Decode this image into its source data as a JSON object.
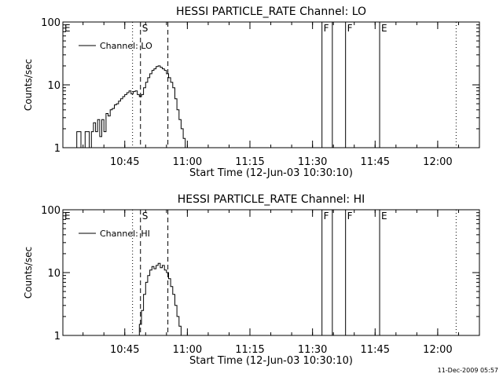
{
  "chart_data": [
    {
      "type": "line",
      "title": "HESSI PARTICLE_RATE Channel: LO",
      "xlabel": "Start Time (12-Jun-03 10:30:10)",
      "ylabel": "Counts/sec",
      "yscale": "log",
      "ylim": [
        1,
        100
      ],
      "xlim": [
        "10:30:10",
        "12:10:00"
      ],
      "x_ticks": [
        "10:45",
        "11:00",
        "11:15",
        "11:30",
        "11:45",
        "12:00"
      ],
      "y_ticks": [
        "1",
        "10",
        "100"
      ],
      "legend_position": "top-left",
      "grid": false,
      "series": [
        {
          "name": "Channel: LO",
          "x": [
            "10:33:00",
            "10:33:30",
            "10:34:00",
            "10:34:30",
            "10:35:00",
            "10:35:30",
            "10:36:00",
            "10:36:30",
            "10:37:00",
            "10:37:30",
            "10:38:00",
            "10:38:30",
            "10:39:00",
            "10:39:30",
            "10:40:00",
            "10:40:30",
            "10:41:00",
            "10:41:30",
            "10:42:00",
            "10:42:30",
            "10:43:00",
            "10:43:30",
            "10:44:00",
            "10:44:30",
            "10:45:00",
            "10:45:30",
            "10:46:00",
            "10:46:30",
            "10:47:00",
            "10:47:30",
            "10:48:00",
            "10:48:30",
            "10:49:00",
            "10:49:30",
            "10:50:00",
            "10:50:30",
            "10:51:00",
            "10:51:30",
            "10:52:00",
            "10:52:30",
            "10:53:00",
            "10:53:30",
            "10:54:00",
            "10:54:30",
            "10:55:00",
            "10:55:30",
            "10:56:00",
            "10:56:30",
            "10:57:00",
            "10:57:30",
            "10:58:00",
            "10:58:30",
            "10:59:00",
            "10:59:30"
          ],
          "values": [
            1,
            1.8,
            1.8,
            1,
            1,
            1.8,
            1.8,
            1,
            1.8,
            2.5,
            1.8,
            2.8,
            1.5,
            2.8,
            1.8,
            3.5,
            3.2,
            4,
            4.2,
            4.8,
            5,
            5.5,
            6,
            6.5,
            7,
            7.5,
            8,
            7.2,
            7.8,
            8,
            7,
            6.5,
            7,
            9,
            11,
            13,
            15,
            17,
            18,
            19.5,
            20,
            19,
            18,
            17,
            15,
            13,
            11,
            9,
            6,
            4,
            2.8,
            2,
            1.4,
            1
          ]
        }
      ],
      "markers": [
        {
          "label": "E",
          "time": "10:30:10",
          "style": "dotted"
        },
        {
          "label": "",
          "time": "10:46:52",
          "style": "dotted"
        },
        {
          "label": "S",
          "time": "10:48:46",
          "style": "dashed"
        },
        {
          "label": "",
          "time": "10:55:20",
          "style": "dashed"
        },
        {
          "label": "F",
          "time": "11:32:16",
          "style": "solid"
        },
        {
          "label": "",
          "time": "11:34:45",
          "style": "solid"
        },
        {
          "label": "F",
          "time": "11:37:55",
          "style": "solid"
        },
        {
          "label": "E",
          "time": "11:46:05",
          "style": "solid"
        },
        {
          "label": "",
          "time": "12:04:25",
          "style": "dotted"
        }
      ]
    },
    {
      "type": "line",
      "title": "HESSI PARTICLE_RATE Channel: HI",
      "xlabel": "Start Time (12-Jun-03 10:30:10)",
      "ylabel": "Counts/sec",
      "yscale": "log",
      "ylim": [
        1,
        100
      ],
      "xlim": [
        "10:30:10",
        "12:10:00"
      ],
      "x_ticks": [
        "10:45",
        "11:00",
        "11:15",
        "11:30",
        "11:45",
        "12:00"
      ],
      "y_ticks": [
        "1",
        "10",
        "100"
      ],
      "legend_position": "top-left",
      "grid": false,
      "series": [
        {
          "name": "Channel: HI",
          "x": [
            "10:48:00",
            "10:48:30",
            "10:49:00",
            "10:49:30",
            "10:50:00",
            "10:50:30",
            "10:51:00",
            "10:51:30",
            "10:52:00",
            "10:52:30",
            "10:53:00",
            "10:53:30",
            "10:54:00",
            "10:54:30",
            "10:55:00",
            "10:55:30",
            "10:56:00",
            "10:56:30",
            "10:57:00",
            "10:57:30",
            "10:58:00",
            "10:58:30"
          ],
          "values": [
            1,
            1.5,
            2.5,
            4.5,
            7,
            9,
            11,
            12.5,
            11.5,
            13,
            14,
            12,
            13,
            11,
            10,
            8,
            6,
            4.5,
            3,
            2,
            1.4,
            1
          ]
        }
      ],
      "markers": [
        {
          "label": "E",
          "time": "10:30:10",
          "style": "dotted"
        },
        {
          "label": "",
          "time": "10:46:52",
          "style": "dotted"
        },
        {
          "label": "S",
          "time": "10:48:46",
          "style": "dashed"
        },
        {
          "label": "",
          "time": "10:55:20",
          "style": "dashed"
        },
        {
          "label": "F",
          "time": "11:32:16",
          "style": "solid"
        },
        {
          "label": "",
          "time": "11:34:45",
          "style": "solid"
        },
        {
          "label": "F",
          "time": "11:37:55",
          "style": "solid"
        },
        {
          "label": "E",
          "time": "11:46:05",
          "style": "solid"
        },
        {
          "label": "",
          "time": "12:04:25",
          "style": "dotted"
        }
      ]
    }
  ],
  "footer": {
    "timestamp": "11-Dec-2009 05:57"
  }
}
